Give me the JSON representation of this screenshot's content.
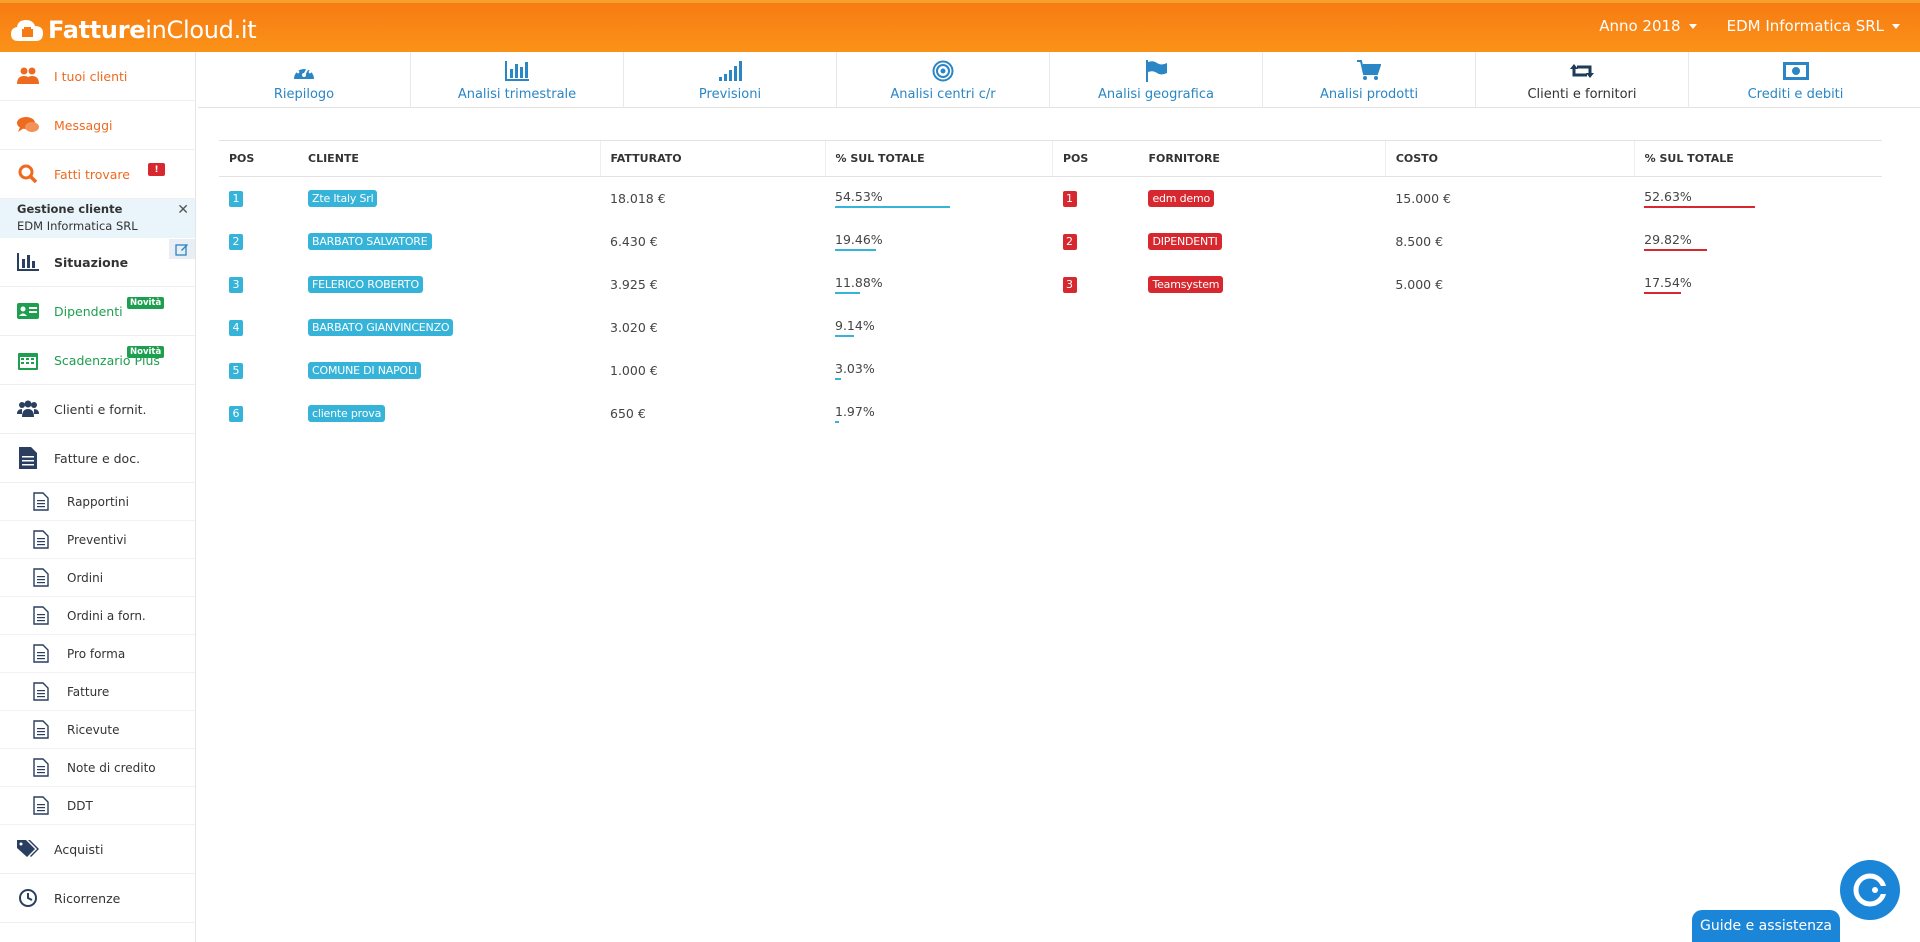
{
  "header": {
    "brand_bold": "Fatture",
    "brand_light": "inCloud.it",
    "year_label": "Anno 2018",
    "company_label": "EDM Informatica SRL"
  },
  "sidebar": {
    "items_top": [
      {
        "label": "I tuoi clienti",
        "icon": "users-icon"
      },
      {
        "label": "Messaggi",
        "icon": "chat-icon"
      },
      {
        "label": "Fatti trovare",
        "icon": "search-icon",
        "alert": "!"
      }
    ],
    "gestione": {
      "title": "Gestione cliente",
      "company": "EDM Informatica SRL"
    },
    "items_main": [
      {
        "label": "Situazione",
        "icon": "bar-chart-icon"
      },
      {
        "label": "Dipendenti",
        "icon": "id-card-icon",
        "badge": "Novità"
      },
      {
        "label": "Scadenzario Plus",
        "icon": "calendar-icon",
        "badge": "Novità"
      },
      {
        "label": "Clienti e fornit.",
        "icon": "users-icon"
      },
      {
        "label": "Fatture e doc.",
        "icon": "document-icon"
      }
    ],
    "subitems": [
      "Rapportini",
      "Preventivi",
      "Ordini",
      "Ordini a forn.",
      "Pro forma",
      "Fatture",
      "Ricevute",
      "Note di credito",
      "DDT"
    ],
    "items_bottom": [
      {
        "label": "Acquisti",
        "icon": "tags-icon"
      },
      {
        "label": "Ricorrenze",
        "icon": "clock-icon"
      }
    ]
  },
  "tabs": [
    {
      "label": "Riepilogo",
      "icon": "dashboard-icon"
    },
    {
      "label": "Analisi trimestrale",
      "icon": "bar-chart-icon"
    },
    {
      "label": "Previsioni",
      "icon": "signal-icon"
    },
    {
      "label": "Analisi centri c/r",
      "icon": "target-icon"
    },
    {
      "label": "Analisi geografica",
      "icon": "flag-icon"
    },
    {
      "label": "Analisi prodotti",
      "icon": "cart-icon"
    },
    {
      "label": "Clienti e fornitori",
      "icon": "retweet-icon",
      "active": true
    },
    {
      "label": "Crediti e debiti",
      "icon": "money-icon"
    }
  ],
  "clients_table": {
    "headers": {
      "pos": "POS",
      "name": "CLIENTE",
      "amount": "FATTURATO",
      "pct": "% SUL TOTALE"
    },
    "rows": [
      {
        "pos": "1",
        "name": "Zte Italy Srl",
        "amount": "18.018 €",
        "pct": "54.53%",
        "share": 54.53
      },
      {
        "pos": "2",
        "name": "BARBATO SALVATORE",
        "amount": "6.430 €",
        "pct": "19.46%",
        "share": 19.46
      },
      {
        "pos": "3",
        "name": "FELERICO ROBERTO",
        "amount": "3.925 €",
        "pct": "11.88%",
        "share": 11.88
      },
      {
        "pos": "4",
        "name": "BARBATO GIANVINCENZO",
        "amount": "3.020 €",
        "pct": "9.14%",
        "share": 9.14
      },
      {
        "pos": "5",
        "name": "COMUNE DI NAPOLI",
        "amount": "1.000 €",
        "pct": "3.03%",
        "share": 3.03
      },
      {
        "pos": "6",
        "name": "cliente prova",
        "amount": "650 €",
        "pct": "1.97%",
        "share": 1.97
      }
    ]
  },
  "suppliers_table": {
    "headers": {
      "pos": "POS",
      "name": "FORNITORE",
      "amount": "COSTO",
      "pct": "% SUL TOTALE"
    },
    "rows": [
      {
        "pos": "1",
        "name": "edm demo",
        "amount": "15.000 €",
        "pct": "52.63%",
        "share": 52.63
      },
      {
        "pos": "2",
        "name": "DIPENDENTI",
        "amount": "8.500 €",
        "pct": "29.82%",
        "share": 29.82
      },
      {
        "pos": "3",
        "name": "Teamsystem",
        "amount": "5.000 €",
        "pct": "17.54%",
        "share": 17.54
      }
    ]
  },
  "help": {
    "label": "Guide e assistenza"
  },
  "colors": {
    "accent_orange": "#f77b13",
    "blue": "#35b3d9",
    "red": "#d7282f",
    "link_blue": "#2a86c4",
    "green": "#1e9e4f"
  }
}
